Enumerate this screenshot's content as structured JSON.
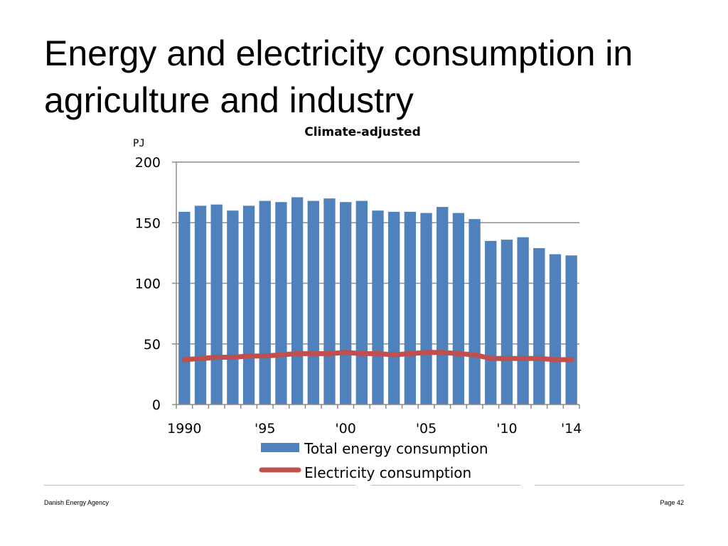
{
  "slide": {
    "title_line1": "Energy and electricity consumption in",
    "title_line2": "agriculture and industry",
    "footer_left": "Danish Energy Agency",
    "footer_right": "Page 42"
  },
  "chart_data": {
    "type": "bar",
    "subtitle": "Climate-adjusted",
    "ylabel": "PJ",
    "ylim": [
      0,
      200
    ],
    "yticks": [
      "0",
      "50",
      "100",
      "150",
      "200"
    ],
    "categories": [
      "1990",
      "1991",
      "1992",
      "1993",
      "1994",
      "1995",
      "1996",
      "1997",
      "1998",
      "1999",
      "2000",
      "2001",
      "2002",
      "2003",
      "2004",
      "2005",
      "2006",
      "2007",
      "2008",
      "2009",
      "2010",
      "2011",
      "2012",
      "2013",
      "2014"
    ],
    "xtick_labels": [
      {
        "index": 0,
        "label": "1990"
      },
      {
        "index": 5,
        "label": "'95"
      },
      {
        "index": 10,
        "label": "'00"
      },
      {
        "index": 15,
        "label": "'05"
      },
      {
        "index": 20,
        "label": "'10"
      },
      {
        "index": 24,
        "label": "'14"
      }
    ],
    "series": [
      {
        "name": "Total energy consumption",
        "type": "bar",
        "color": "#4f81bd",
        "values": [
          159,
          164,
          165,
          160,
          164,
          168,
          167,
          171,
          168,
          170,
          167,
          168,
          160,
          159,
          159,
          158,
          163,
          158,
          153,
          135,
          136,
          138,
          129,
          124,
          123
        ]
      },
      {
        "name": "Electricity consumption",
        "type": "line",
        "color": "#c0504d",
        "values": [
          37,
          38,
          39,
          39,
          40,
          40,
          41,
          42,
          42,
          42,
          43,
          42,
          42,
          41,
          42,
          43,
          43,
          42,
          41,
          38,
          38,
          38,
          38,
          37,
          37
        ]
      }
    ],
    "grid": true,
    "legend_position": "bottom"
  }
}
